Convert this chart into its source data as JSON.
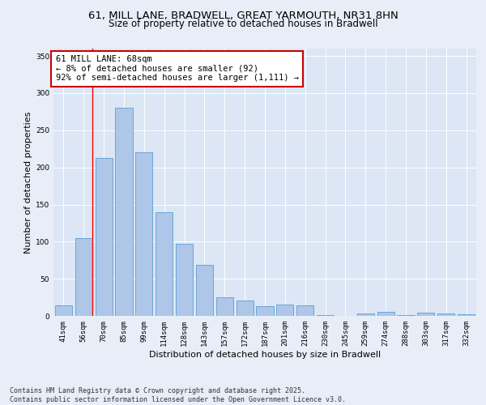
{
  "title1": "61, MILL LANE, BRADWELL, GREAT YARMOUTH, NR31 8HN",
  "title2": "Size of property relative to detached houses in Bradwell",
  "xlabel": "Distribution of detached houses by size in Bradwell",
  "ylabel": "Number of detached properties",
  "categories": [
    "41sqm",
    "56sqm",
    "70sqm",
    "85sqm",
    "99sqm",
    "114sqm",
    "128sqm",
    "143sqm",
    "157sqm",
    "172sqm",
    "187sqm",
    "201sqm",
    "216sqm",
    "230sqm",
    "245sqm",
    "259sqm",
    "274sqm",
    "288sqm",
    "303sqm",
    "317sqm",
    "332sqm"
  ],
  "values": [
    14,
    105,
    213,
    280,
    220,
    140,
    97,
    69,
    25,
    21,
    13,
    15,
    14,
    1,
    0,
    3,
    5,
    1,
    4,
    3,
    2
  ],
  "bar_color": "#aec6e8",
  "bar_edge_color": "#5a9fd4",
  "annotation_text": "61 MILL LANE: 68sqm\n← 8% of detached houses are smaller (92)\n92% of semi-detached houses are larger (1,111) →",
  "annotation_box_color": "#ffffff",
  "annotation_box_edge_color": "#cc0000",
  "background_color": "#e8eef8",
  "plot_bg_color": "#dce6f5",
  "grid_color": "#ffffff",
  "ylim": [
    0,
    360
  ],
  "yticks": [
    0,
    50,
    100,
    150,
    200,
    250,
    300,
    350
  ],
  "footnote": "Contains HM Land Registry data © Crown copyright and database right 2025.\nContains public sector information licensed under the Open Government Licence v3.0.",
  "title_fontsize": 9.5,
  "subtitle_fontsize": 8.5,
  "axis_label_fontsize": 8,
  "tick_fontsize": 6.5,
  "annotation_fontsize": 7.5
}
